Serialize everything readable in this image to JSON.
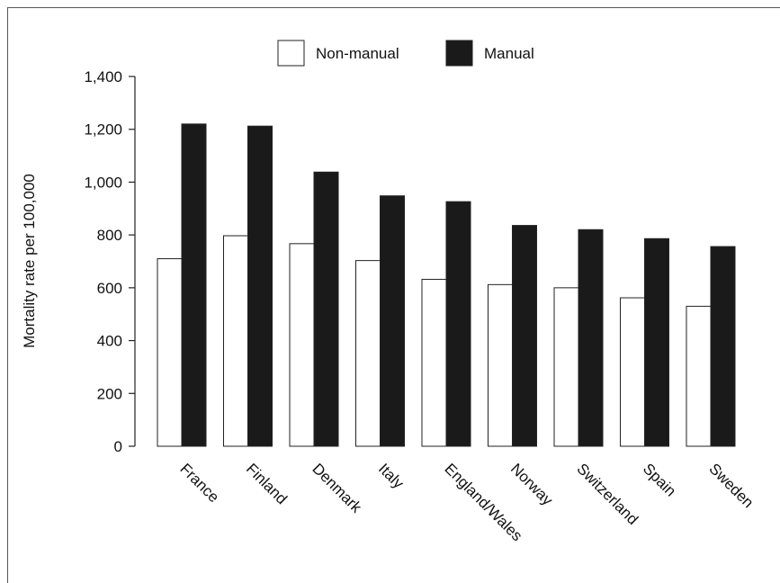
{
  "chart_data": {
    "type": "bar",
    "title": "",
    "xlabel": "",
    "ylabel": "Mortality rate per 100,000",
    "ylim": [
      0,
      1400
    ],
    "yticks": [
      0,
      200,
      400,
      600,
      800,
      1000,
      1200,
      1400
    ],
    "ytick_labels": [
      "0",
      "200",
      "400",
      "600",
      "800",
      "1,000",
      "1,200",
      "1,400"
    ],
    "categories": [
      "France",
      "Finland",
      "Denmark",
      "Italy",
      "England/Wales",
      "Norway",
      "Switzerland",
      "Spain",
      "Sweden"
    ],
    "series": [
      {
        "name": "Non-manual",
        "color": "#ffffff",
        "values": [
          710,
          797,
          767,
          703,
          632,
          612,
          600,
          562,
          530
        ]
      },
      {
        "name": "Manual",
        "color": "#1a1a1a",
        "values": [
          1220,
          1212,
          1038,
          948,
          926,
          836,
          820,
          786,
          756
        ]
      }
    ],
    "grid": false,
    "legend_position": "top-center"
  }
}
